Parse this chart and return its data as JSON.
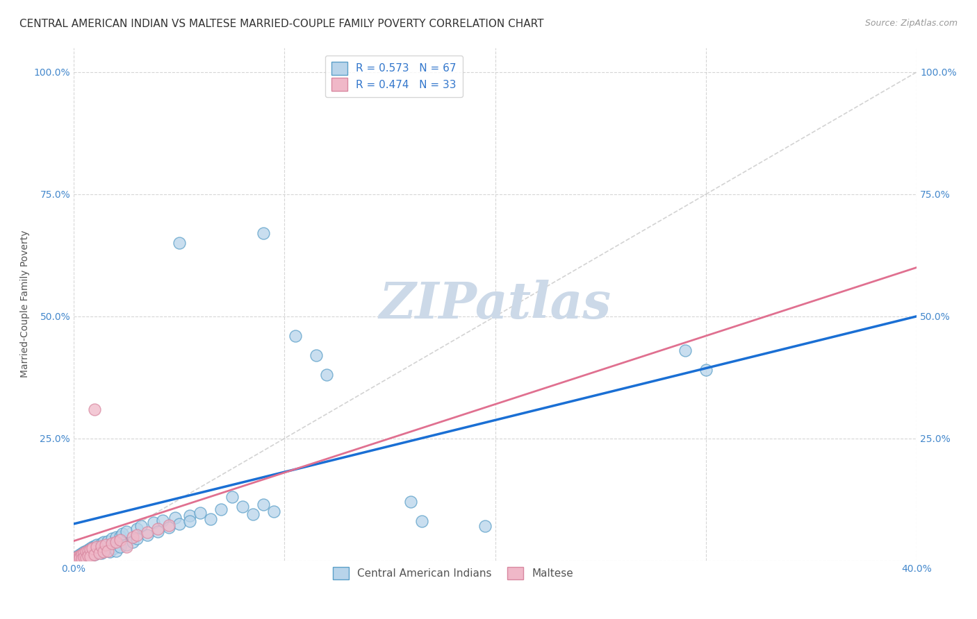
{
  "title": "CENTRAL AMERICAN INDIAN VS MALTESE MARRIED-COUPLE FAMILY POVERTY CORRELATION CHART",
  "source": "Source: ZipAtlas.com",
  "ylabel": "Married-Couple Family Poverty",
  "xlim": [
    0.0,
    0.4
  ],
  "ylim": [
    0.0,
    1.05
  ],
  "x_ticks": [
    0.0,
    0.1,
    0.2,
    0.3,
    0.4
  ],
  "x_tick_labels": [
    "0.0%",
    "",
    "",
    "",
    "40.0%"
  ],
  "y_tick_labels": [
    "",
    "25.0%",
    "50.0%",
    "75.0%",
    "100.0%"
  ],
  "y_ticks": [
    0.0,
    0.25,
    0.5,
    0.75,
    1.0
  ],
  "watermark": "ZIPatlas",
  "blue_scatter": [
    [
      0.001,
      0.005
    ],
    [
      0.002,
      0.01
    ],
    [
      0.002,
      0.008
    ],
    [
      0.003,
      0.012
    ],
    [
      0.003,
      0.007
    ],
    [
      0.004,
      0.015
    ],
    [
      0.004,
      0.005
    ],
    [
      0.005,
      0.018
    ],
    [
      0.005,
      0.01
    ],
    [
      0.006,
      0.02
    ],
    [
      0.006,
      0.008
    ],
    [
      0.007,
      0.022
    ],
    [
      0.007,
      0.012
    ],
    [
      0.008,
      0.025
    ],
    [
      0.008,
      0.01
    ],
    [
      0.009,
      0.028
    ],
    [
      0.009,
      0.015
    ],
    [
      0.01,
      0.03
    ],
    [
      0.01,
      0.012
    ],
    [
      0.011,
      0.032
    ],
    [
      0.012,
      0.018
    ],
    [
      0.013,
      0.035
    ],
    [
      0.013,
      0.015
    ],
    [
      0.014,
      0.038
    ],
    [
      0.015,
      0.022
    ],
    [
      0.016,
      0.04
    ],
    [
      0.017,
      0.018
    ],
    [
      0.018,
      0.045
    ],
    [
      0.019,
      0.025
    ],
    [
      0.02,
      0.048
    ],
    [
      0.02,
      0.02
    ],
    [
      0.022,
      0.05
    ],
    [
      0.022,
      0.028
    ],
    [
      0.023,
      0.055
    ],
    [
      0.025,
      0.032
    ],
    [
      0.025,
      0.06
    ],
    [
      0.028,
      0.038
    ],
    [
      0.03,
      0.065
    ],
    [
      0.03,
      0.045
    ],
    [
      0.032,
      0.07
    ],
    [
      0.035,
      0.052
    ],
    [
      0.038,
      0.078
    ],
    [
      0.04,
      0.06
    ],
    [
      0.042,
      0.082
    ],
    [
      0.045,
      0.068
    ],
    [
      0.048,
      0.088
    ],
    [
      0.05,
      0.075
    ],
    [
      0.055,
      0.092
    ],
    [
      0.055,
      0.08
    ],
    [
      0.06,
      0.098
    ],
    [
      0.065,
      0.085
    ],
    [
      0.07,
      0.105
    ],
    [
      0.08,
      0.11
    ],
    [
      0.085,
      0.095
    ],
    [
      0.09,
      0.115
    ],
    [
      0.095,
      0.1
    ],
    [
      0.05,
      0.65
    ],
    [
      0.075,
      0.13
    ],
    [
      0.09,
      0.67
    ],
    [
      0.105,
      0.46
    ],
    [
      0.115,
      0.42
    ],
    [
      0.12,
      0.38
    ],
    [
      0.16,
      0.12
    ],
    [
      0.165,
      0.08
    ],
    [
      0.195,
      0.07
    ],
    [
      0.29,
      0.43
    ],
    [
      0.3,
      0.39
    ]
  ],
  "pink_scatter": [
    [
      0.001,
      0.005
    ],
    [
      0.002,
      0.008
    ],
    [
      0.002,
      0.004
    ],
    [
      0.003,
      0.01
    ],
    [
      0.003,
      0.006
    ],
    [
      0.004,
      0.012
    ],
    [
      0.004,
      0.004
    ],
    [
      0.005,
      0.015
    ],
    [
      0.005,
      0.007
    ],
    [
      0.006,
      0.018
    ],
    [
      0.006,
      0.006
    ],
    [
      0.007,
      0.02
    ],
    [
      0.007,
      0.01
    ],
    [
      0.008,
      0.022
    ],
    [
      0.008,
      0.008
    ],
    [
      0.009,
      0.025
    ],
    [
      0.01,
      0.012
    ],
    [
      0.011,
      0.028
    ],
    [
      0.012,
      0.015
    ],
    [
      0.013,
      0.03
    ],
    [
      0.014,
      0.018
    ],
    [
      0.015,
      0.032
    ],
    [
      0.016,
      0.02
    ],
    [
      0.018,
      0.035
    ],
    [
      0.02,
      0.038
    ],
    [
      0.022,
      0.042
    ],
    [
      0.025,
      0.028
    ],
    [
      0.028,
      0.048
    ],
    [
      0.03,
      0.052
    ],
    [
      0.035,
      0.058
    ],
    [
      0.04,
      0.065
    ],
    [
      0.045,
      0.072
    ],
    [
      0.01,
      0.31
    ]
  ],
  "blue_line_x": [
    0.0,
    0.4
  ],
  "blue_line_y": [
    0.075,
    0.5
  ],
  "pink_line_x": [
    0.0,
    0.4
  ],
  "pink_line_y": [
    0.04,
    0.6
  ],
  "diag_line_x": [
    0.0,
    0.4
  ],
  "diag_line_y": [
    0.0,
    1.0
  ],
  "title_fontsize": 11,
  "source_fontsize": 9,
  "axis_label_fontsize": 10,
  "tick_fontsize": 10,
  "watermark_fontsize": 52,
  "watermark_color": "#ccd9e8",
  "background_color": "#ffffff",
  "grid_color": "#cccccc",
  "blue_dot_face": "#b8d4ea",
  "blue_dot_edge": "#5a9fc8",
  "pink_dot_face": "#f0b8c8",
  "pink_dot_edge": "#d888a0",
  "blue_line_color": "#1a6fd4",
  "pink_line_color": "#e07090",
  "diag_line_color": "#c8c8c8"
}
